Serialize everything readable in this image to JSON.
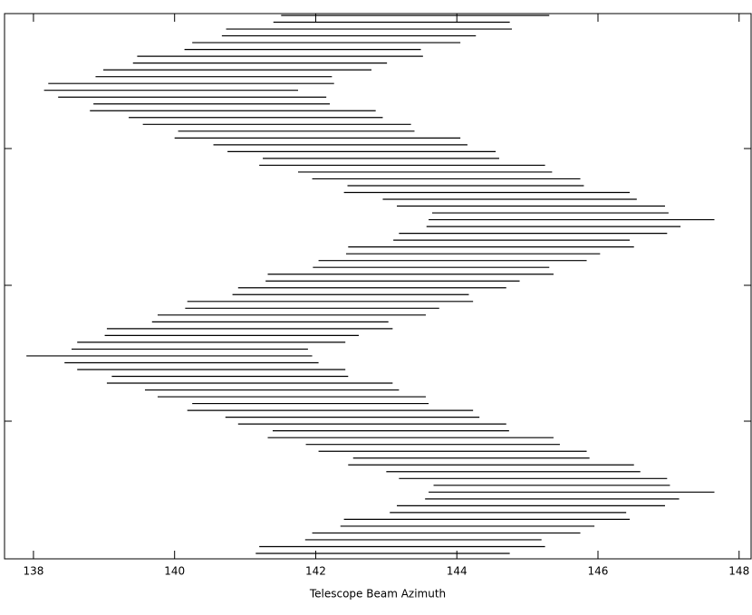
{
  "chart_data": {
    "type": "segments",
    "xlabel": "Telescope Beam Azimuth",
    "color": "#000000",
    "xlim": [
      137.59,
      148.17
    ],
    "xticks": [
      138,
      140,
      142,
      144,
      146,
      148
    ],
    "starts": [
      141.51,
      141.4,
      140.73,
      140.67,
      140.25,
      140.14,
      139.47,
      139.41,
      138.99,
      138.88,
      138.21,
      138.15,
      138.35,
      138.85,
      138.8,
      139.35,
      139.55,
      140.05,
      140.0,
      140.55,
      140.75,
      141.25,
      141.2,
      141.75,
      141.95,
      142.45,
      142.4,
      142.95,
      143.15,
      143.65,
      143.6,
      143.57,
      143.18,
      143.1,
      142.46,
      142.43,
      142.04,
      141.96,
      141.32,
      141.29,
      140.9,
      140.82,
      140.18,
      140.15,
      139.76,
      139.68,
      139.04,
      139.01,
      138.62,
      138.54,
      137.9,
      138.44,
      138.62,
      139.11,
      139.04,
      139.58,
      139.76,
      140.25,
      140.18,
      140.72,
      140.9,
      141.39,
      141.32,
      141.86,
      142.04,
      142.53,
      142.46,
      143.0,
      143.18,
      143.67,
      143.6,
      143.55,
      143.15,
      143.05,
      142.4,
      142.35,
      141.95,
      141.85,
      141.2,
      141.15
    ],
    "ends": [
      145.31,
      144.75,
      144.78,
      144.27,
      144.05,
      143.49,
      143.52,
      143.01,
      142.79,
      142.23,
      142.26,
      141.75,
      142.15,
      142.2,
      142.85,
      142.95,
      143.35,
      143.4,
      144.05,
      144.15,
      144.55,
      144.6,
      145.25,
      145.35,
      145.75,
      145.8,
      146.45,
      146.55,
      146.95,
      147.0,
      147.65,
      147.17,
      146.98,
      146.45,
      146.51,
      146.03,
      145.84,
      145.31,
      145.37,
      144.89,
      144.7,
      144.17,
      144.23,
      143.75,
      143.56,
      143.03,
      143.09,
      142.61,
      142.42,
      141.89,
      141.95,
      142.04,
      142.42,
      142.46,
      143.09,
      143.18,
      143.56,
      143.6,
      144.23,
      144.32,
      144.7,
      144.74,
      145.37,
      145.46,
      145.84,
      145.88,
      146.51,
      146.6,
      146.98,
      147.02,
      147.65,
      147.15,
      146.95,
      146.4,
      146.45,
      145.95,
      145.75,
      145.2,
      145.25,
      144.75
    ]
  }
}
